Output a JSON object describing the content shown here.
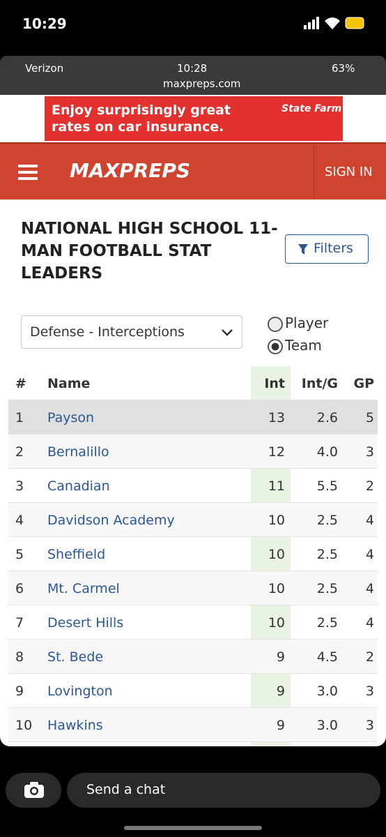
{
  "status_bar": {
    "time": "10:29"
  },
  "browser_status": {
    "carrier": "Verizon",
    "time": "10:28",
    "battery": "63%",
    "url": "maxpreps.com"
  },
  "ad": {
    "text": "Enjoy surprisingly great rates on car insurance.",
    "brand": "State Farm"
  },
  "nav": {
    "logo": "MAXPREPS",
    "sign_in": "SIGN IN"
  },
  "page": {
    "title": "NATIONAL HIGH SCHOOL 11-MAN FOOTBALL STAT LEADERS",
    "filters": "Filters",
    "dropdown": "Defense - Interceptions",
    "radio": [
      {
        "label": "Player",
        "selected": false
      },
      {
        "label": "Team",
        "selected": true
      }
    ]
  },
  "table": {
    "headers": [
      "#",
      "Name",
      "Int",
      "Int/G",
      "GP"
    ],
    "rows": [
      [
        1,
        "Payson",
        13,
        "2.6",
        5
      ],
      [
        2,
        "Bernalillo",
        12,
        "4.0",
        3
      ],
      [
        3,
        "Canadian",
        11,
        "5.5",
        2
      ],
      [
        4,
        "Davidson Academy",
        10,
        "2.5",
        4
      ],
      [
        5,
        "Sheffield",
        10,
        "2.5",
        4
      ],
      [
        6,
        "Mt. Carmel",
        10,
        "2.5",
        4
      ],
      [
        7,
        "Desert Hills",
        10,
        "2.5",
        4
      ],
      [
        8,
        "St. Bede",
        9,
        "4.5",
        2
      ],
      [
        9,
        "Lovington",
        9,
        "3.0",
        3
      ],
      [
        10,
        "Hawkins",
        9,
        "3.0",
        3
      ]
    ]
  },
  "chat": {
    "placeholder": "Send a chat"
  }
}
